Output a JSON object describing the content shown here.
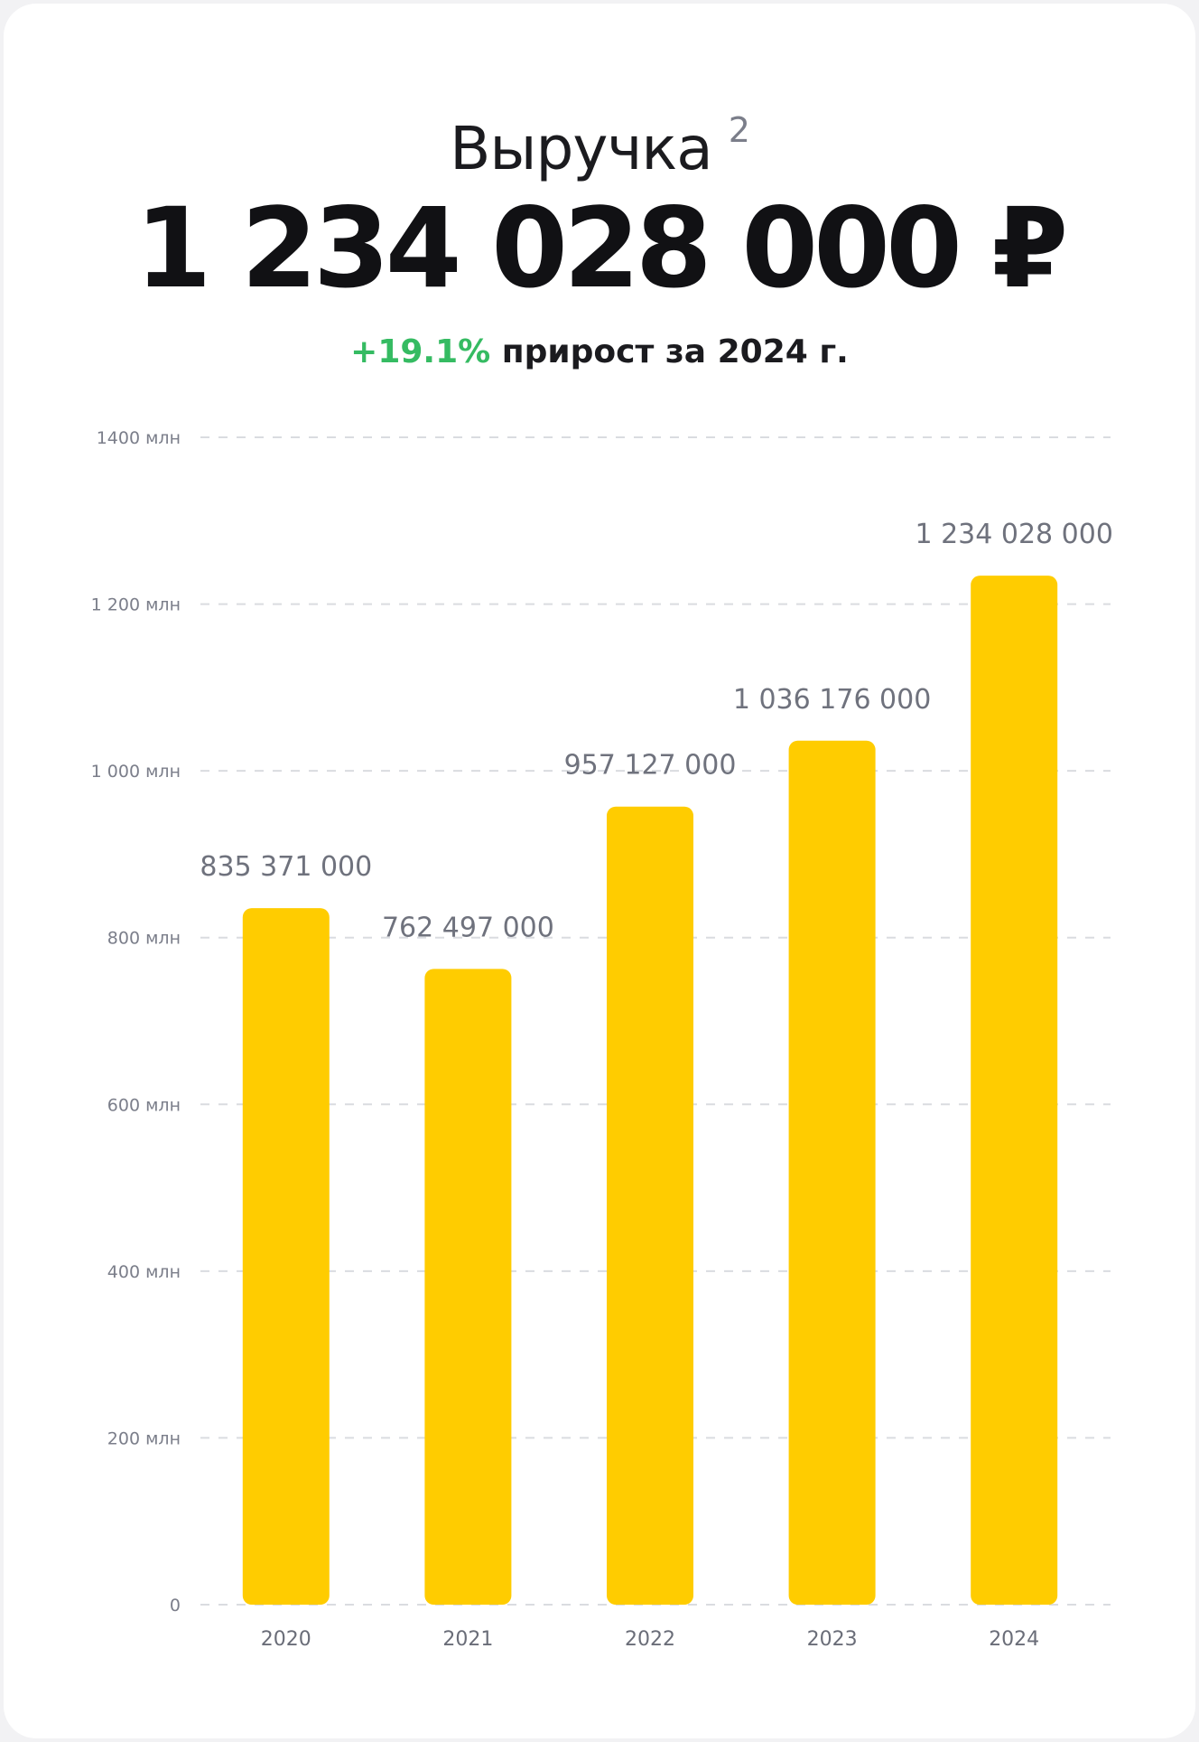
{
  "header": {
    "title": "Выручка",
    "footnote": "2",
    "total": "1 234 028 000 ₽",
    "growth_pct": "+19.1%",
    "growth_text": "прирост за 2024 г."
  },
  "colors": {
    "bar": "#FFCC00",
    "growth": "#35BB62",
    "grid": "#DADCE0"
  },
  "chart_data": {
    "type": "bar",
    "categories": [
      "2020",
      "2021",
      "2022",
      "2023",
      "2024"
    ],
    "values": [
      835371000,
      762497000,
      957127000,
      1036176000,
      1234028000
    ],
    "value_labels": [
      "835 371 000",
      "762 497 000",
      "957 127 000",
      "1 036 176 000",
      "1 234 028 000"
    ],
    "yticks": [
      0,
      200000000,
      400000000,
      600000000,
      800000000,
      1000000000,
      1200000000,
      1400000000
    ],
    "ytick_labels": [
      "0",
      "200 млн",
      "400 млн",
      "600 млн",
      "800 млн",
      "1 000 млн",
      "1 200 млн",
      "1400 млн"
    ],
    "ylim": [
      0,
      1400000000
    ],
    "grid": true,
    "title": "Выручка",
    "xlabel": "",
    "ylabel": ""
  }
}
